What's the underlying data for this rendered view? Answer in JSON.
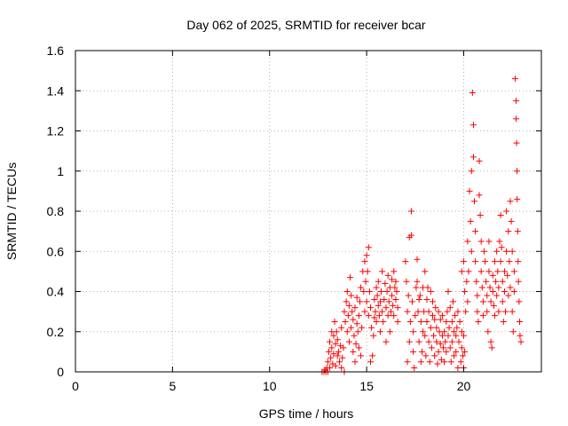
{
  "chart_data": {
    "type": "scatter",
    "title": "Day 062 of 2025, SRMTID for receiver bcar",
    "xlabel": "GPS time / hours",
    "ylabel": "SRMTID / TECUs",
    "xlim": [
      0,
      24
    ],
    "ylim": [
      0,
      1.6
    ],
    "xticks": [
      0,
      5,
      10,
      15,
      20
    ],
    "xtick_labels": [
      "0",
      "5",
      "10",
      "15",
      "20"
    ],
    "yticks": [
      0,
      0.2,
      0.4,
      0.6,
      0.8,
      1,
      1.2,
      1.4,
      1.6
    ],
    "ytick_labels": [
      "0",
      "0.2",
      "0.4",
      "0.6",
      "0.8",
      "1",
      "1.2",
      "1.4",
      "1.6"
    ],
    "grid": true,
    "marker": "+",
    "color": "#ff0000",
    "series": [
      {
        "name": "SRMTID",
        "points": [
          [
            12.7,
            0.0
          ],
          [
            12.8,
            0.0
          ],
          [
            12.85,
            0.01
          ],
          [
            12.9,
            0.0
          ],
          [
            12.95,
            0.02
          ],
          [
            13.0,
            0.0
          ],
          [
            13.0,
            0.05
          ],
          [
            13.05,
            0.1
          ],
          [
            13.1,
            0.02
          ],
          [
            13.1,
            0.15
          ],
          [
            13.15,
            0.07
          ],
          [
            13.2,
            0.12
          ],
          [
            13.2,
            0.2
          ],
          [
            13.25,
            0.04
          ],
          [
            13.3,
            0.18
          ],
          [
            13.3,
            0.09
          ],
          [
            13.35,
            0.25
          ],
          [
            13.4,
            0.14
          ],
          [
            13.4,
            0.03
          ],
          [
            13.45,
            0.2
          ],
          [
            13.5,
            0.08
          ],
          [
            13.5,
            0.16
          ],
          [
            13.55,
            0.1
          ],
          [
            13.6,
            0.05
          ],
          [
            13.65,
            0.13
          ],
          [
            13.7,
            0.22
          ],
          [
            13.7,
            0.02
          ],
          [
            13.75,
            0.07
          ],
          [
            13.8,
            0.12
          ],
          [
            13.85,
            0.0
          ],
          [
            13.85,
            0.3
          ],
          [
            13.9,
            0.25
          ],
          [
            13.95,
            0.35
          ],
          [
            14.0,
            0.2
          ],
          [
            14.0,
            0.4
          ],
          [
            14.05,
            0.28
          ],
          [
            14.1,
            0.33
          ],
          [
            14.1,
            0.15
          ],
          [
            14.15,
            0.47
          ],
          [
            14.2,
            0.38
          ],
          [
            14.2,
            0.22
          ],
          [
            14.25,
            0.3
          ],
          [
            14.3,
            0.26
          ],
          [
            14.3,
            0.1
          ],
          [
            14.35,
            0.18
          ],
          [
            14.4,
            0.32
          ],
          [
            14.4,
            0.05
          ],
          [
            14.45,
            0.14
          ],
          [
            14.5,
            0.24
          ],
          [
            14.5,
            0.37
          ],
          [
            14.55,
            0.2
          ],
          [
            14.6,
            0.12
          ],
          [
            14.6,
            0.28
          ],
          [
            14.65,
            0.35
          ],
          [
            14.7,
            0.42
          ],
          [
            14.7,
            0.08
          ],
          [
            14.75,
            0.22
          ],
          [
            14.8,
            0.5
          ],
          [
            14.85,
            0.4
          ],
          [
            14.9,
            0.3
          ],
          [
            14.9,
            0.55
          ],
          [
            14.95,
            0.45
          ],
          [
            15.0,
            0.58
          ],
          [
            15.0,
            0.35
          ],
          [
            15.05,
            0.5
          ],
          [
            15.1,
            0.62
          ],
          [
            15.1,
            0.28
          ],
          [
            15.15,
            0.4
          ],
          [
            15.2,
            0.32
          ],
          [
            15.2,
            0.05
          ],
          [
            15.25,
            0.22
          ],
          [
            15.3,
            0.08
          ],
          [
            15.35,
            0.18
          ],
          [
            15.4,
            0.27
          ],
          [
            15.4,
            0.36
          ],
          [
            15.45,
            0.3
          ],
          [
            15.5,
            0.25
          ],
          [
            15.5,
            0.42
          ],
          [
            15.55,
            0.38
          ],
          [
            15.6,
            0.33
          ],
          [
            15.6,
            0.45
          ],
          [
            15.65,
            0.28
          ],
          [
            15.7,
            0.35
          ],
          [
            15.7,
            0.2
          ],
          [
            15.75,
            0.4
          ],
          [
            15.8,
            0.3
          ],
          [
            15.8,
            0.5
          ],
          [
            15.85,
            0.25
          ],
          [
            15.9,
            0.36
          ],
          [
            15.95,
            0.44
          ],
          [
            16.0,
            0.32
          ],
          [
            16.0,
            0.15
          ],
          [
            16.05,
            0.4
          ],
          [
            16.1,
            0.28
          ],
          [
            16.1,
            0.48
          ],
          [
            16.15,
            0.35
          ],
          [
            16.2,
            0.42
          ],
          [
            16.2,
            0.2
          ],
          [
            16.25,
            0.3
          ],
          [
            16.3,
            0.46
          ],
          [
            16.3,
            0.38
          ],
          [
            16.35,
            0.33
          ],
          [
            16.4,
            0.5
          ],
          [
            16.4,
            0.28
          ],
          [
            16.45,
            0.42
          ],
          [
            16.5,
            0.36
          ],
          [
            16.5,
            0.45
          ],
          [
            16.55,
            0.4
          ],
          [
            16.6,
            0.32
          ],
          [
            16.6,
            0.25
          ],
          [
            17.0,
            0.55
          ],
          [
            17.05,
            0.45
          ],
          [
            17.1,
            0.3
          ],
          [
            17.1,
            0.05
          ],
          [
            17.15,
            0.38
          ],
          [
            17.2,
            0.67
          ],
          [
            17.2,
            0.15
          ],
          [
            17.25,
            0.25
          ],
          [
            17.3,
            0.8
          ],
          [
            17.3,
            0.68
          ],
          [
            17.35,
            0.35
          ],
          [
            17.4,
            0.1
          ],
          [
            17.4,
            0.2
          ],
          [
            17.45,
            0.02
          ],
          [
            17.5,
            0.28
          ],
          [
            17.55,
            0.42
          ],
          [
            17.6,
            0.56
          ],
          [
            17.6,
            0.45
          ],
          [
            17.65,
            0.3
          ],
          [
            17.7,
            0.36
          ],
          [
            17.7,
            0.15
          ],
          [
            17.75,
            0.38
          ],
          [
            17.8,
            0.25
          ],
          [
            17.8,
            0.05
          ],
          [
            17.85,
            0.1
          ],
          [
            17.9,
            0.2
          ],
          [
            17.9,
            0.42
          ],
          [
            17.95,
            0.3
          ],
          [
            18.0,
            0.5
          ],
          [
            18.0,
            0.18
          ],
          [
            18.05,
            0.08
          ],
          [
            18.1,
            0.36
          ],
          [
            18.1,
            0.25
          ],
          [
            18.15,
            0.42
          ],
          [
            18.2,
            0.15
          ],
          [
            18.2,
            0.3
          ],
          [
            18.25,
            0.05
          ],
          [
            18.3,
            0.22
          ],
          [
            18.3,
            0.4
          ],
          [
            18.35,
            0.12
          ],
          [
            18.4,
            0.28
          ],
          [
            18.4,
            0.35
          ],
          [
            18.45,
            0.18
          ],
          [
            18.5,
            0.08
          ],
          [
            18.5,
            0.26
          ],
          [
            18.55,
            0.32
          ],
          [
            18.6,
            0.15
          ],
          [
            18.6,
            0.22
          ],
          [
            18.65,
            0.04
          ],
          [
            18.7,
            0.3
          ],
          [
            18.7,
            0.1
          ],
          [
            18.75,
            0.2
          ],
          [
            18.8,
            0.26
          ],
          [
            18.8,
            0.14
          ],
          [
            18.85,
            0.06
          ],
          [
            18.9,
            0.18
          ],
          [
            18.9,
            0.28
          ],
          [
            18.95,
            0.12
          ],
          [
            19.0,
            0.2
          ],
          [
            19.0,
            0.05
          ],
          [
            19.05,
            0.15
          ],
          [
            19.1,
            0.25
          ],
          [
            19.1,
            0.1
          ],
          [
            19.15,
            0.3
          ],
          [
            19.2,
            0.18
          ],
          [
            19.2,
            0.4
          ],
          [
            19.25,
            0.22
          ],
          [
            19.3,
            0.12
          ],
          [
            19.3,
            0.32
          ],
          [
            19.35,
            0.05
          ],
          [
            19.4,
            0.25
          ],
          [
            19.4,
            0.15
          ],
          [
            19.45,
            0.35
          ],
          [
            19.5,
            0.2
          ],
          [
            19.5,
            0.08
          ],
          [
            19.55,
            0.28
          ],
          [
            19.6,
            0.18
          ],
          [
            19.6,
            0.1
          ],
          [
            19.65,
            0.22
          ],
          [
            19.7,
            0.3
          ],
          [
            19.7,
            0.02
          ],
          [
            19.75,
            0.15
          ],
          [
            19.8,
            0.25
          ],
          [
            19.85,
            0.05
          ],
          [
            19.9,
            0.12
          ],
          [
            19.9,
            0.2
          ],
          [
            19.95,
            0.08
          ],
          [
            20.0,
            0.18
          ],
          [
            20.0,
            0.02
          ],
          [
            20.05,
            0.1
          ],
          [
            19.9,
            0.5
          ],
          [
            20.0,
            0.55
          ],
          [
            20.05,
            0.4
          ],
          [
            20.1,
            0.3
          ],
          [
            20.15,
            0.45
          ],
          [
            20.2,
            0.35
          ],
          [
            20.2,
            0.65
          ],
          [
            20.25,
            0.5
          ],
          [
            20.3,
            0.9
          ],
          [
            20.35,
            0.75
          ],
          [
            20.4,
            0.6
          ],
          [
            20.4,
            1.0
          ],
          [
            20.45,
            1.39
          ],
          [
            20.5,
            1.23
          ],
          [
            20.5,
            1.07
          ],
          [
            20.55,
            0.85
          ],
          [
            20.6,
            0.7
          ],
          [
            20.6,
            0.55
          ],
          [
            20.65,
            0.45
          ],
          [
            20.7,
            0.38
          ],
          [
            20.7,
            0.3
          ],
          [
            20.75,
            0.25
          ],
          [
            20.8,
            1.05
          ],
          [
            20.8,
            0.88
          ],
          [
            20.85,
            0.78
          ],
          [
            20.9,
            0.65
          ],
          [
            20.9,
            0.5
          ],
          [
            20.95,
            0.42
          ],
          [
            21.0,
            0.35
          ],
          [
            21.0,
            0.28
          ],
          [
            21.05,
            0.6
          ],
          [
            21.1,
            0.55
          ],
          [
            21.15,
            0.45
          ],
          [
            21.2,
            0.38
          ],
          [
            21.2,
            0.3
          ],
          [
            21.25,
            0.2
          ],
          [
            21.3,
            0.65
          ],
          [
            21.3,
            0.5
          ],
          [
            21.35,
            0.42
          ],
          [
            21.4,
            0.35
          ],
          [
            21.4,
            0.15
          ],
          [
            21.45,
            0.12
          ],
          [
            21.5,
            0.48
          ],
          [
            21.5,
            0.4
          ],
          [
            21.55,
            0.33
          ],
          [
            21.6,
            0.28
          ],
          [
            21.6,
            0.55
          ],
          [
            21.65,
            0.45
          ],
          [
            21.7,
            0.38
          ],
          [
            21.7,
            0.6
          ],
          [
            21.75,
            0.5
          ],
          [
            21.8,
            0.42
          ],
          [
            21.8,
            0.3
          ],
          [
            21.85,
            0.65
          ],
          [
            21.9,
            0.55
          ],
          [
            21.9,
            0.78
          ],
          [
            21.95,
            0.62
          ],
          [
            22.0,
            0.45
          ],
          [
            22.0,
            0.35
          ],
          [
            22.05,
            0.25
          ],
          [
            22.1,
            0.5
          ],
          [
            22.1,
            0.4
          ],
          [
            22.15,
            0.3
          ],
          [
            22.2,
            0.8
          ],
          [
            22.2,
            0.6
          ],
          [
            22.25,
            0.48
          ],
          [
            22.3,
            0.38
          ],
          [
            22.3,
            0.7
          ],
          [
            22.35,
            0.55
          ],
          [
            22.4,
            0.42
          ],
          [
            22.4,
            0.85
          ],
          [
            22.45,
            0.75
          ],
          [
            22.5,
            0.6
          ],
          [
            22.5,
            0.3
          ],
          [
            22.55,
            0.2
          ],
          [
            22.6,
            0.5
          ],
          [
            22.6,
            0.4
          ],
          [
            22.65,
            1.46
          ],
          [
            22.7,
            1.35
          ],
          [
            22.7,
            1.26
          ],
          [
            22.72,
            1.14
          ],
          [
            22.74,
            1.0
          ],
          [
            22.75,
            0.86
          ],
          [
            22.78,
            0.7
          ],
          [
            22.8,
            0.55
          ],
          [
            22.82,
            0.45
          ],
          [
            22.85,
            0.35
          ],
          [
            22.88,
            0.25
          ],
          [
            22.9,
            0.18
          ],
          [
            22.95,
            0.15
          ]
        ]
      }
    ]
  }
}
